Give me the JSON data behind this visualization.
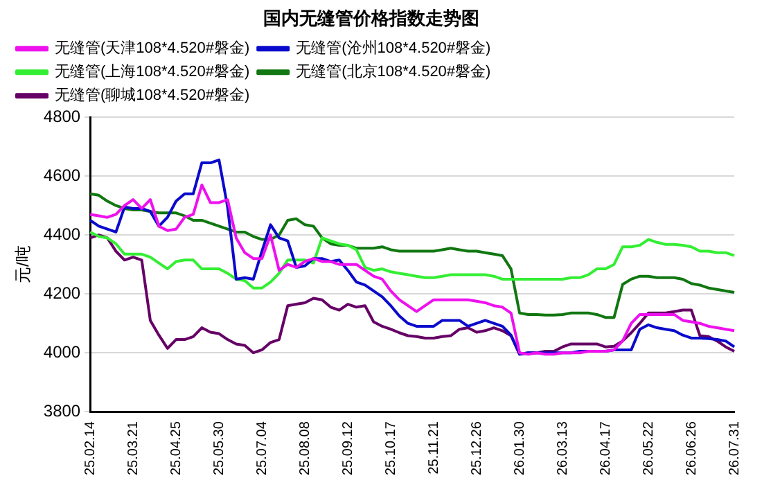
{
  "chart_data": {
    "type": "line",
    "title": "国内无缝管价格指数走势图",
    "ylabel": "元/吨",
    "categories": [
      "25.02.14",
      null,
      null,
      null,
      null,
      "25.03.21",
      null,
      null,
      null,
      null,
      "25.04.25",
      null,
      null,
      null,
      null,
      "25.05.30",
      null,
      null,
      null,
      null,
      "25.07.04",
      null,
      null,
      null,
      null,
      "25.08.08",
      null,
      null,
      null,
      null,
      "25.09.12",
      null,
      null,
      null,
      null,
      "25.10.17",
      null,
      null,
      null,
      null,
      "25.11.21",
      null,
      null,
      null,
      null,
      "25.12.26",
      null,
      null,
      null,
      null,
      "26.01.30",
      null,
      null,
      null,
      null,
      "26.03.13",
      null,
      null,
      null,
      null,
      "26.04.17",
      null,
      null,
      null,
      null,
      "26.05.22",
      null,
      null,
      null,
      null,
      "26.06.26",
      null,
      null,
      null,
      null,
      "26.07.31"
    ],
    "series": [
      {
        "name": "无缝管(天津108*4.520#磐金)",
        "color": "#ee11ee",
        "values": [
          4470,
          4465,
          4460,
          4470,
          4500,
          4520,
          4490,
          4520,
          4430,
          4415,
          4420,
          4460,
          4470,
          4570,
          4510,
          4510,
          4520,
          4390,
          4340,
          4320,
          4320,
          4400,
          4280,
          4300,
          4290,
          4310,
          4320,
          4310,
          4310,
          4300,
          4300,
          4300,
          4280,
          4260,
          4250,
          4210,
          4180,
          4160,
          4140,
          4160,
          4180,
          4180,
          4180,
          4180,
          4180,
          4175,
          4170,
          4160,
          4155,
          4135,
          4000,
          3995,
          4000,
          3995,
          3995,
          4000,
          4000,
          4000,
          4005,
          4005,
          4005,
          4010,
          4040,
          4100,
          4130,
          4130,
          4130,
          4130,
          4130,
          4110,
          4105,
          4100,
          4090,
          4085,
          4080,
          4075
        ]
      },
      {
        "name": "无缝管(沧州108*4.520#磐金)",
        "color": "#0a0acc",
        "values": [
          4450,
          4430,
          4420,
          4410,
          4495,
          4490,
          4490,
          4480,
          4430,
          4460,
          4515,
          4540,
          4540,
          4645,
          4645,
          4655,
          4495,
          4250,
          4255,
          4250,
          4345,
          4435,
          4390,
          4380,
          4290,
          4295,
          4320,
          4320,
          4310,
          4315,
          4280,
          4240,
          4230,
          4210,
          4190,
          4160,
          4125,
          4100,
          4090,
          4090,
          4090,
          4110,
          4110,
          4110,
          4090,
          4100,
          4110,
          4100,
          4090,
          4060,
          3995,
          4000,
          4000,
          4000,
          4000,
          4000,
          4000,
          4005,
          4005,
          4005,
          4005,
          4010,
          4010,
          4010,
          4080,
          4095,
          4085,
          4080,
          4075,
          4060,
          4050,
          4050,
          4048,
          4045,
          4040,
          4020
        ]
      },
      {
        "name": "无缝管(上海108*4.520#磐金)",
        "color": "#33ee33",
        "values": [
          4410,
          4395,
          4390,
          4370,
          4335,
          4335,
          4335,
          4325,
          4305,
          4285,
          4310,
          4315,
          4315,
          4285,
          4285,
          4285,
          4270,
          4250,
          4245,
          4220,
          4220,
          4240,
          4270,
          4315,
          4315,
          4315,
          4305,
          4390,
          4380,
          4370,
          4365,
          4350,
          4290,
          4280,
          4285,
          4275,
          4270,
          4265,
          4260,
          4255,
          4255,
          4260,
          4265,
          4265,
          4265,
          4265,
          4265,
          4260,
          4250,
          4250,
          4250,
          4250,
          4250,
          4250,
          4250,
          4250,
          4255,
          4255,
          4265,
          4285,
          4285,
          4300,
          4360,
          4360,
          4365,
          4385,
          4375,
          4368,
          4368,
          4365,
          4360,
          4345,
          4345,
          4340,
          4340,
          4330
        ]
      },
      {
        "name": "无缝管(北京108*4.520#磐金)",
        "color": "#117711",
        "values": [
          4540,
          4535,
          4515,
          4500,
          4490,
          4485,
          4485,
          4480,
          4475,
          4475,
          4475,
          4465,
          4450,
          4450,
          4440,
          4430,
          4420,
          4410,
          4410,
          4395,
          4385,
          4385,
          4400,
          4450,
          4455,
          4435,
          4430,
          4390,
          4370,
          4365,
          4365,
          4355,
          4355,
          4355,
          4360,
          4350,
          4345,
          4345,
          4345,
          4345,
          4345,
          4350,
          4355,
          4350,
          4345,
          4345,
          4340,
          4335,
          4330,
          4285,
          4135,
          4130,
          4130,
          4128,
          4128,
          4130,
          4135,
          4135,
          4135,
          4130,
          4120,
          4120,
          4232,
          4250,
          4260,
          4260,
          4255,
          4255,
          4255,
          4250,
          4235,
          4230,
          4220,
          4215,
          4210,
          4205
        ]
      },
      {
        "name": "无缝管(聊城108*4.520#磐金)",
        "color": "#660066",
        "values": [
          4390,
          4400,
          4390,
          4345,
          4315,
          4325,
          4315,
          4110,
          4060,
          4015,
          4045,
          4045,
          4055,
          4085,
          4070,
          4065,
          4045,
          4030,
          4025,
          4000,
          4010,
          4035,
          4045,
          4160,
          4165,
          4170,
          4185,
          4180,
          4155,
          4145,
          4165,
          4155,
          4160,
          4105,
          4090,
          4080,
          4068,
          4058,
          4055,
          4050,
          4050,
          4055,
          4058,
          4080,
          4085,
          4070,
          4075,
          4085,
          4075,
          4058,
          3995,
          4000,
          4000,
          4005,
          4005,
          4020,
          4030,
          4030,
          4030,
          4030,
          4020,
          4022,
          4040,
          4068,
          4100,
          4135,
          4135,
          4135,
          4140,
          4145,
          4145,
          4058,
          4055,
          4040,
          4020,
          4005
        ]
      }
    ],
    "ylim": [
      3800,
      4800
    ],
    "yticks": [
      3800,
      4000,
      4200,
      4400,
      4600,
      4800
    ],
    "grid": "y",
    "legend": "top",
    "marker": "none",
    "line_style": "solid"
  }
}
